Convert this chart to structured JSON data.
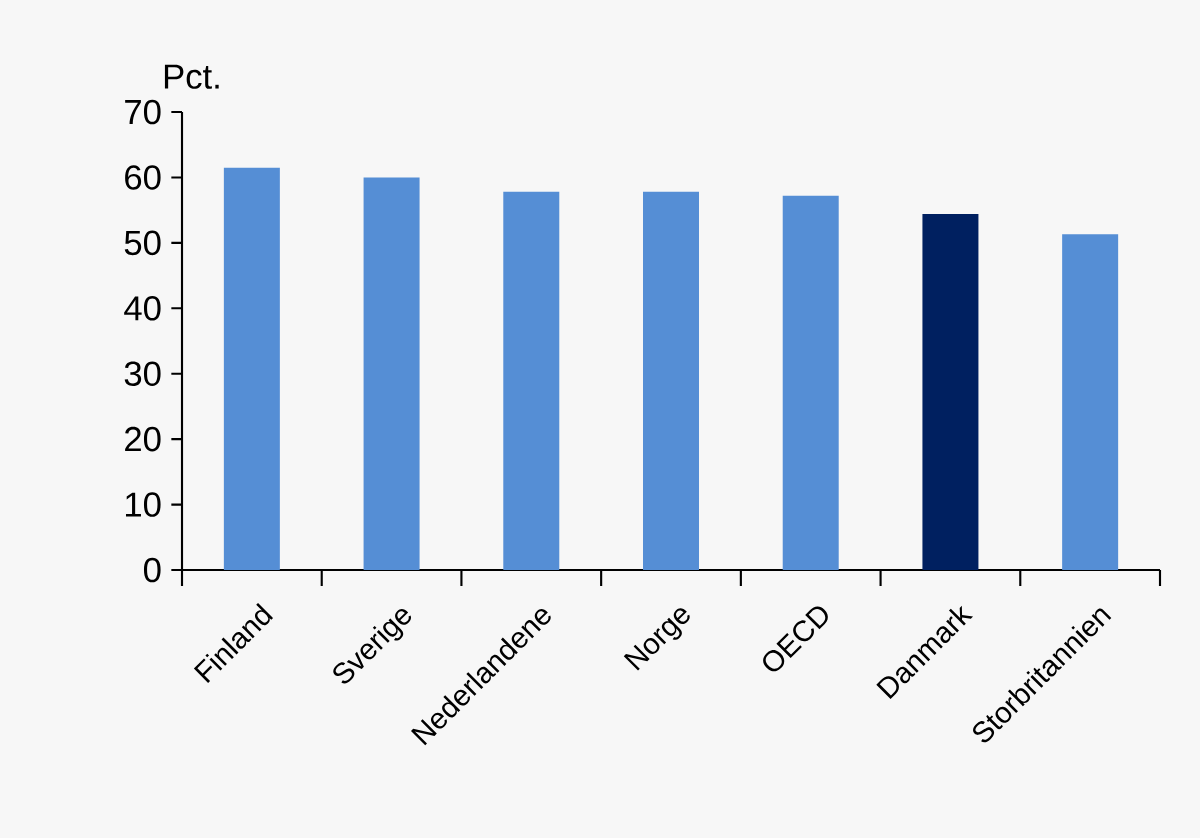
{
  "chart_data": {
    "type": "bar",
    "ylabel": "Pct.",
    "categories": [
      "Finland",
      "Sverige",
      "Nederlandene",
      "Norge",
      "OECD",
      "Danmark",
      "Storbritannien"
    ],
    "values": [
      61.5,
      60.0,
      57.8,
      57.8,
      57.2,
      54.4,
      51.3
    ],
    "colors": [
      "#558ed5",
      "#558ed5",
      "#558ed5",
      "#558ed5",
      "#558ed5",
      "#002060",
      "#558ed5"
    ],
    "ylim": [
      0,
      70
    ],
    "yticks": [
      0,
      10,
      20,
      30,
      40,
      50,
      60,
      70
    ],
    "grid": false
  }
}
